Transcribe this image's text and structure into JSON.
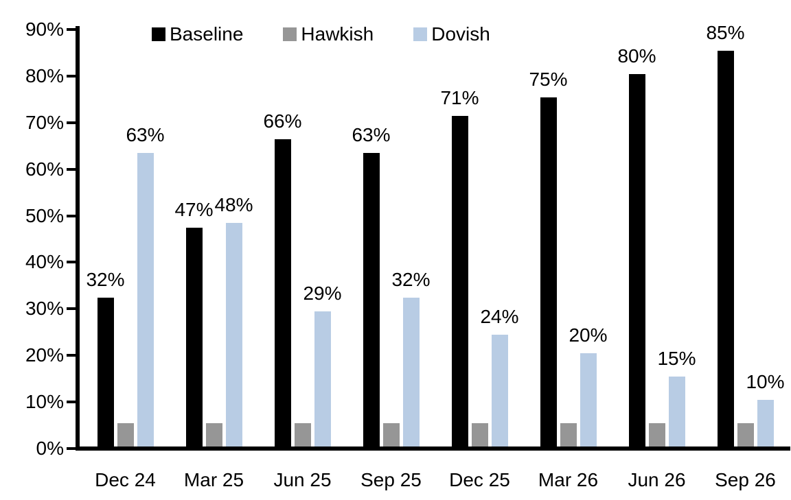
{
  "chart_data": {
    "type": "bar",
    "title": "",
    "categories": [
      "Dec 24",
      "Mar 25",
      "Jun 25",
      "Sep 25",
      "Dec 25",
      "Mar 26",
      "Jun 26",
      "Sep 26"
    ],
    "series": [
      {
        "name": "Baseline",
        "color": "#000000",
        "values": [
          32,
          47,
          66,
          63,
          71,
          75,
          80,
          85
        ],
        "data_labels": [
          "32%",
          "47%",
          "66%",
          "63%",
          "71%",
          "75%",
          "80%",
          "85%"
        ]
      },
      {
        "name": "Hawkish",
        "color": "#969696",
        "values": [
          5,
          5,
          5,
          5,
          5,
          5,
          5,
          5
        ],
        "data_labels": [
          "",
          "",
          "",
          "",
          "",
          "",
          "",
          ""
        ]
      },
      {
        "name": "Dovish",
        "color": "#b8cce4",
        "values": [
          63,
          48,
          29,
          32,
          24,
          20,
          15,
          10
        ],
        "data_labels": [
          "63%",
          "48%",
          "29%",
          "32%",
          "24%",
          "20%",
          "15%",
          "10%"
        ]
      }
    ],
    "y_axis": {
      "min": 0,
      "max": 90,
      "step": 10,
      "unit": "%",
      "tick_labels": [
        "0%",
        "10%",
        "20%",
        "30%",
        "40%",
        "50%",
        "60%",
        "70%",
        "80%",
        "90%"
      ]
    },
    "legend": {
      "position": "top",
      "entries": [
        "Baseline",
        "Hawkish",
        "Dovish"
      ]
    },
    "grid": false,
    "text_color": "#000000",
    "background_color": "#ffffff"
  }
}
